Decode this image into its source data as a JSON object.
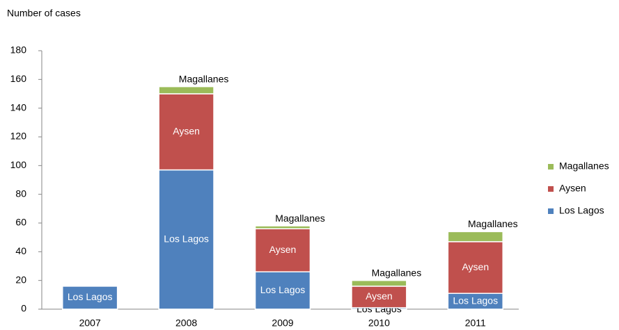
{
  "chart_data": {
    "type": "stacked-bar",
    "y_label": "Number of cases",
    "categories": [
      "2007",
      "2008",
      "2009",
      "2010",
      "2011"
    ],
    "series": [
      {
        "name": "Los Lagos",
        "color": "#4f81bd",
        "values": [
          16,
          97,
          26,
          1,
          11
        ]
      },
      {
        "name": "Aysen",
        "color": "#c0504d",
        "values": [
          0,
          53,
          30,
          15,
          36
        ]
      },
      {
        "name": "Magallanes",
        "color": "#9bbb59",
        "values": [
          0,
          5,
          2,
          4,
          7
        ]
      }
    ],
    "ylim": [
      0,
      180
    ],
    "yticks": [
      0,
      20,
      40,
      60,
      80,
      100,
      120,
      140,
      160,
      180
    ],
    "legend": "right"
  }
}
